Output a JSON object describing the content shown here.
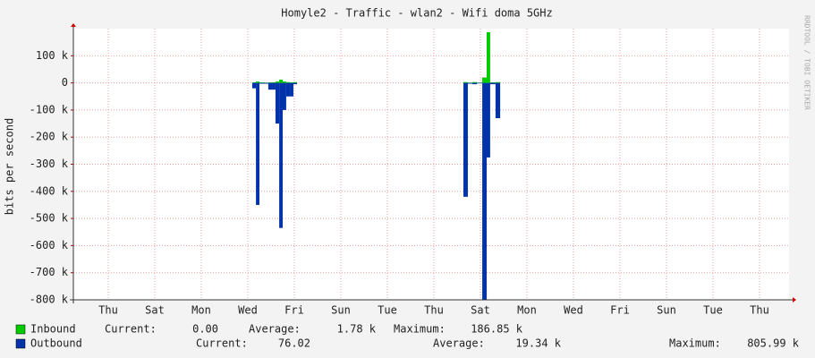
{
  "chart_data": {
    "type": "area",
    "title": "Homyle2 - Traffic - wlan2 - Wifi doma 5GHz",
    "y_label": "bits per second",
    "side_text": "RRDTOOL / TOBI OETIKER",
    "xlim": [
      0,
      30.77
    ],
    "xticks": [
      {
        "value": 1.5,
        "label": "Thu"
      },
      {
        "value": 3.5,
        "label": "Sat"
      },
      {
        "value": 5.5,
        "label": "Mon"
      },
      {
        "value": 7.5,
        "label": "Wed"
      },
      {
        "value": 9.5,
        "label": "Fri"
      },
      {
        "value": 11.5,
        "label": "Sun"
      },
      {
        "value": 13.5,
        "label": "Tue"
      },
      {
        "value": 15.5,
        "label": "Thu"
      },
      {
        "value": 17.5,
        "label": "Sat"
      },
      {
        "value": 19.5,
        "label": "Mon"
      },
      {
        "value": 21.5,
        "label": "Wed"
      },
      {
        "value": 23.5,
        "label": "Fri"
      },
      {
        "value": 25.5,
        "label": "Sun"
      },
      {
        "value": 27.5,
        "label": "Tue"
      },
      {
        "value": 29.5,
        "label": "Thu"
      }
    ],
    "ylim": [
      -800000,
      200000
    ],
    "yticks": [
      {
        "value": 100000,
        "label": "100 k"
      },
      0,
      {
        "value": -100000,
        "label": "-100 k"
      },
      {
        "value": -200000,
        "label": "-200 k"
      },
      {
        "value": -300000,
        "label": "-300 k"
      },
      {
        "value": -400000,
        "label": "-400 k"
      },
      {
        "value": -500000,
        "label": "-500 k"
      },
      {
        "value": -600000,
        "label": "-600 k"
      },
      {
        "value": -700000,
        "label": "-700 k"
      },
      {
        "value": -800000,
        "label": "-800 k"
      }
    ],
    "grid": true,
    "x": [
      7.69,
      7.85,
      8.0,
      8.23,
      8.38,
      8.54,
      8.69,
      8.85,
      9.0,
      9.15,
      9.31,
      9.46,
      9.62,
      16.77,
      16.96,
      17.15,
      17.35,
      17.58,
      17.77,
      17.92,
      18.15,
      18.35
    ],
    "stat_labels": [
      "Current:",
      "Average:",
      "Maximum:"
    ],
    "series": [
      {
        "name": "Inbound",
        "color": "#00cc00",
        "values": [
          2000,
          5000,
          2000,
          1000,
          2000,
          2000,
          5000,
          12000,
          5000,
          3000,
          2000,
          3000,
          null,
          3000,
          1000,
          3000,
          1000,
          20000,
          186850,
          2000,
          3000,
          null
        ],
        "stats": [
          "0.00",
          "1.78 k",
          "186.85 k"
        ]
      },
      {
        "name": "Outbound",
        "color": "#0033aa",
        "values": [
          -20000,
          -450000,
          -3000,
          -3000,
          -25000,
          -25000,
          -150000,
          -535000,
          -100000,
          -50000,
          -50000,
          -5000,
          null,
          -420000,
          -3000,
          -5000,
          -2000,
          -805990,
          -275000,
          -5000,
          -130000,
          null
        ],
        "stats": [
          "76.02",
          "19.34 k",
          "805.99 k"
        ]
      }
    ]
  }
}
